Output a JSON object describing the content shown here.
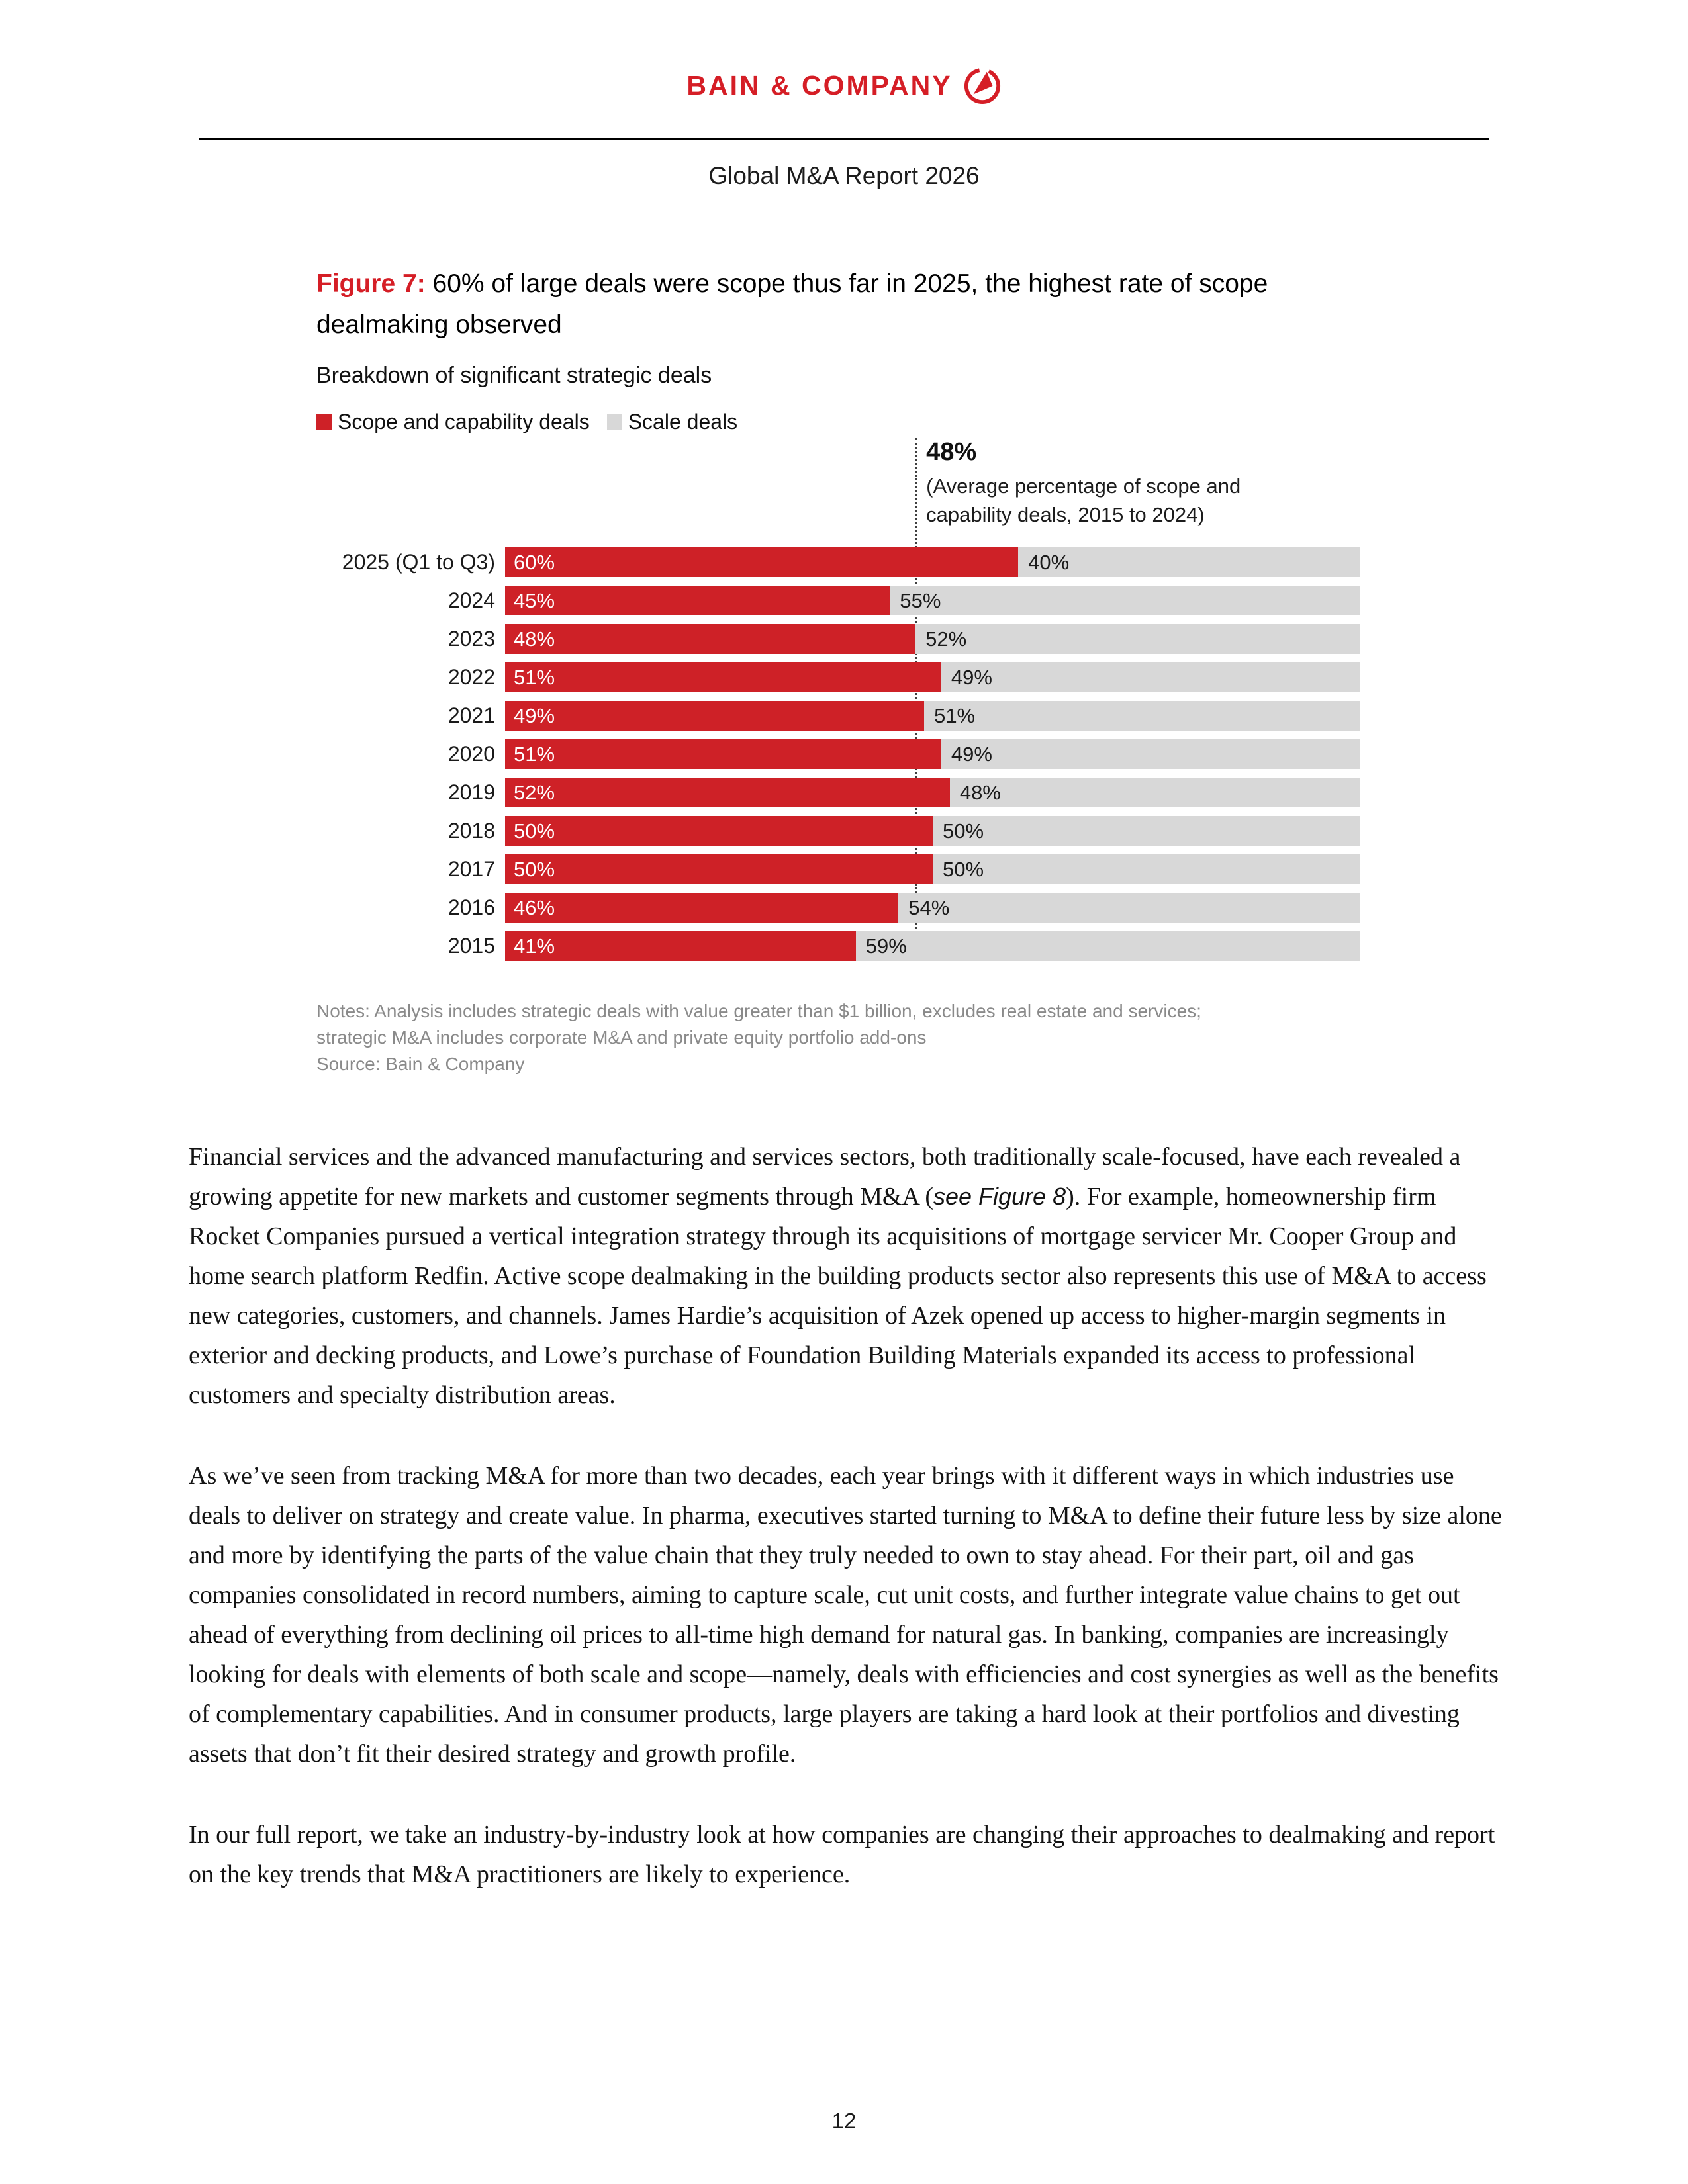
{
  "page": {
    "brand": "BAIN & COMPANY",
    "report_title": "Global M&A Report 2026",
    "page_number": "12"
  },
  "colors": {
    "brand_red": "#d51e26",
    "bar_red": "#ce2127",
    "bar_gray": "#d8d8d8",
    "notes_gray": "#8a8a8a"
  },
  "figure": {
    "label": "Figure 7:",
    "title_rest": " 60% of large deals were scope thus far in 2025, the highest rate of scope dealmaking observed",
    "subtitle": "Breakdown of significant strategic deals",
    "legend": [
      {
        "label": "Scope and capability deals"
      },
      {
        "label": "Scale deals"
      }
    ],
    "notes_line1": "Notes: Analysis includes strategic deals with value greater than $1 billion, excludes real estate and services;",
    "notes_line2": "strategic M&A includes corporate M&A and private equity portfolio add-ons",
    "source": "Source: Bain & Company"
  },
  "chart_data": {
    "type": "bar",
    "orientation": "horizontal",
    "stacked": true,
    "grid": false,
    "legend_position": "top-left",
    "value_format": "percent",
    "xlim": [
      0,
      100
    ],
    "categories": [
      "2025 (Q1 to Q3)",
      "2024",
      "2023",
      "2022",
      "2021",
      "2020",
      "2019",
      "2018",
      "2017",
      "2016",
      "2015"
    ],
    "series": [
      {
        "name": "Scope and capability deals",
        "color": "#ce2127",
        "values": [
          60,
          45,
          48,
          51,
          49,
          51,
          52,
          50,
          50,
          46,
          41
        ]
      },
      {
        "name": "Scale deals",
        "color": "#d8d8d8",
        "values": [
          40,
          55,
          52,
          49,
          51,
          49,
          48,
          50,
          50,
          54,
          59
        ]
      }
    ],
    "annotation": {
      "value": 48,
      "label": "48%",
      "description": "(Average percentage of scope and capability deals, 2015 to 2024)"
    }
  },
  "body": {
    "p1_seg1": "Financial services and the advanced manufacturing and services sectors, both traditionally scale-focused, have each revealed a growing appetite for new markets and customer segments through M&A (",
    "p1_seg2": "see Figure 8",
    "p1_seg3": "). For example, homeownership firm Rocket Companies pursued a vertical integration strategy through its acquisitions of mortgage servicer Mr. Cooper Group and home search platform Redfin. Active scope dealmaking in the building products sector also represents this use of M&A to access new categories, customers, and channels. James Hardie’s acquisition of Azek opened up access to higher-margin segments in exterior and decking products, and Lowe’s purchase of Foundation Building Materials expanded its access to professional customers and specialty distribution areas.",
    "p2": "As we’ve seen from tracking M&A for more than two decades, each year brings with it different ways in which industries use deals to deliver on strategy and create value. In pharma, executives started turning to M&A to define their future less by size alone and more by identifying the parts of the value chain that they truly needed to own to stay ahead. For their part, oil and gas companies consolidated in record numbers, aiming to capture scale, cut unit costs, and further integrate value chains to get out ahead of everything from declining oil prices to all-time high demand for natural gas. In banking, companies are increasingly looking for deals with elements of both scale and scope—namely, deals with efficiencies and cost synergies as well as the benefits of complementary capabilities. And in consumer products, large players are taking a hard look at their portfolios and divesting assets that don’t fit their desired strategy and growth profile.",
    "p3": "In our full report, we take an industry-by-industry look at how companies are changing their approaches to dealmaking and report on the key trends that M&A practitioners are likely to experience."
  }
}
